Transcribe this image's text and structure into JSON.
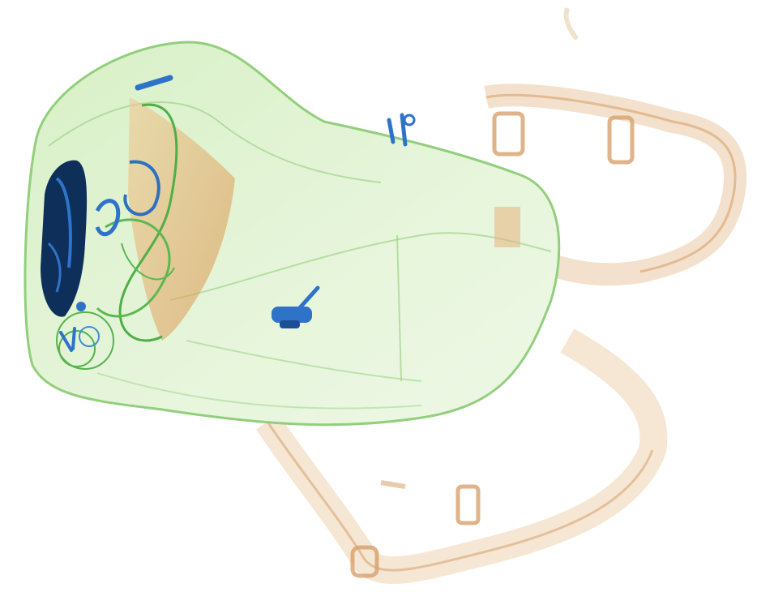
{
  "image": {
    "kind": "x-ray baggage scan",
    "background_color": "#ffffff",
    "colors": {
      "organic_light": "#e9c49a",
      "organic_dark": "#d99a55",
      "mixed_green": "#8fcf7a",
      "mixed_green_light": "#d8f0c8",
      "metal_blue": "#2f73c9",
      "metal_dark": "#0d2f5a"
    },
    "objects": [
      {
        "name": "backpack-body",
        "material": "mixed"
      },
      {
        "name": "shoulder-strap-upper",
        "material": "organic"
      },
      {
        "name": "shoulder-strap-lower",
        "material": "organic"
      },
      {
        "name": "pliers",
        "material": "metal"
      },
      {
        "name": "zipper-pull-top",
        "material": "metal"
      },
      {
        "name": "zipper-pull-center",
        "material": "metal"
      },
      {
        "name": "cable-bundle",
        "material": "mixed"
      },
      {
        "name": "dense-object-left",
        "material": "metal"
      }
    ]
  }
}
